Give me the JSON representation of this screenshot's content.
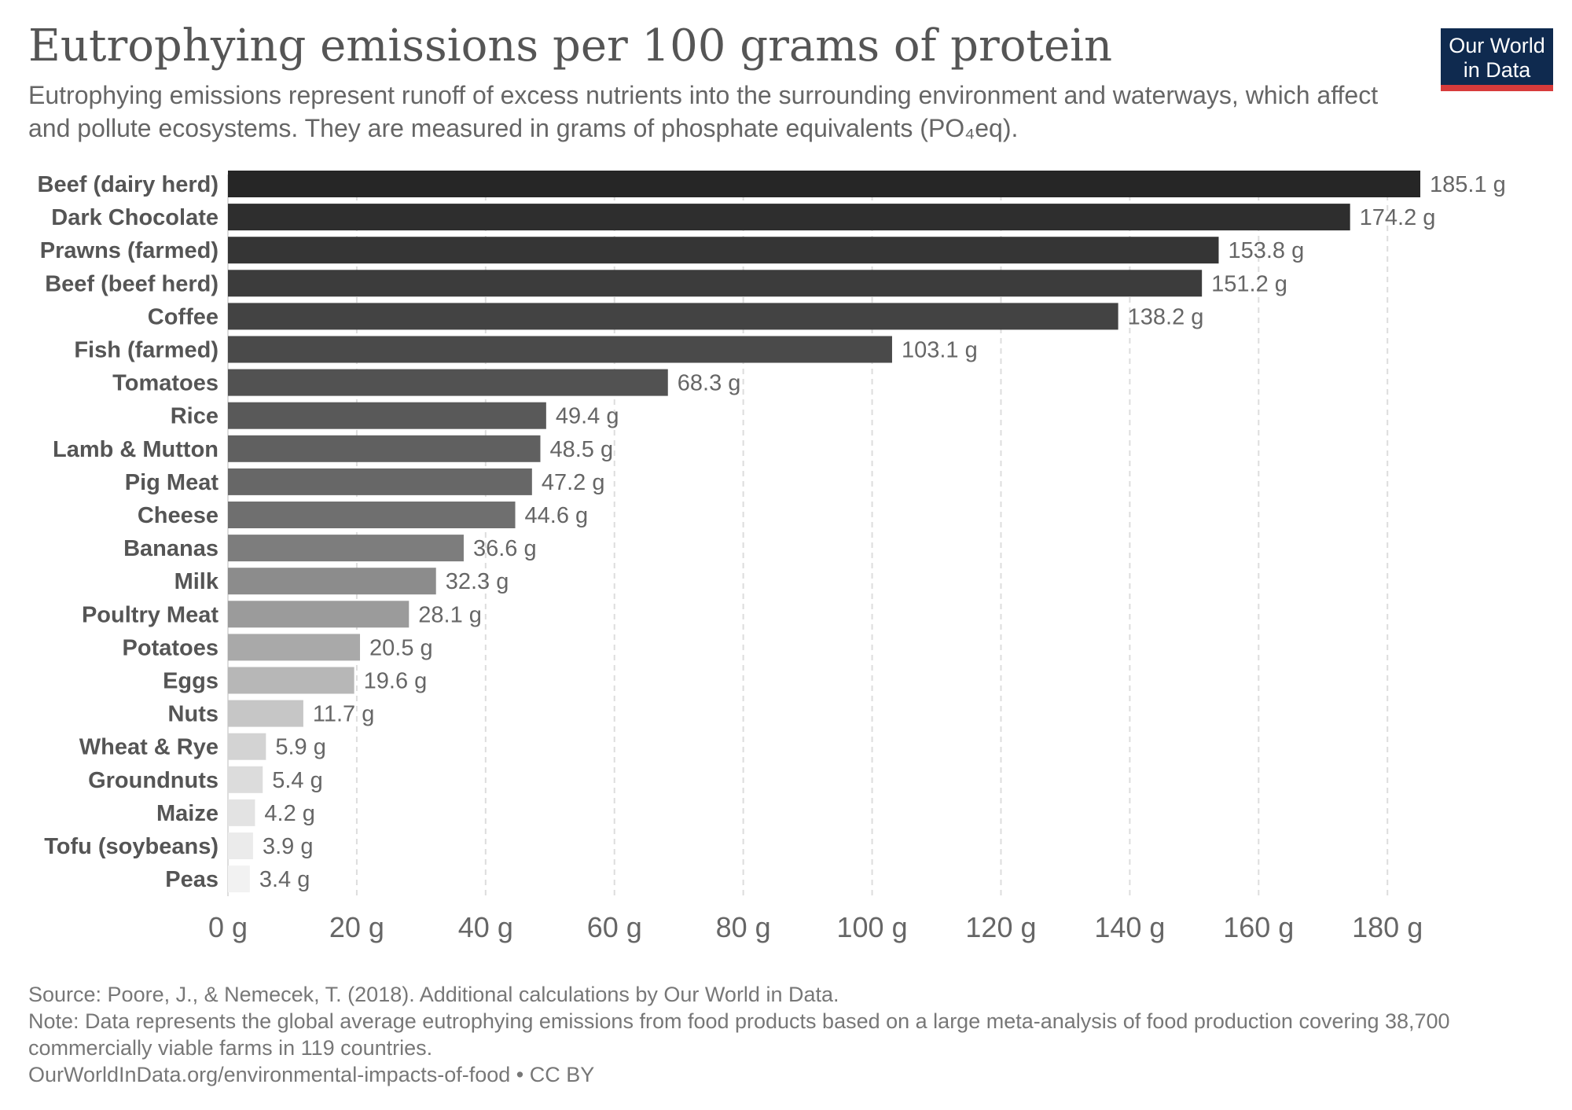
{
  "header": {
    "title": "Eutrophying emissions per 100 grams of protein",
    "subtitle": "Eutrophying emissions represent runoff of excess nutrients into the surrounding environment and waterways, which affect and pollute ecosystems. They are measured in grams of phosphate equivalents (PO₄eq)."
  },
  "logo": {
    "line1": "Our World",
    "line2": "in Data"
  },
  "chart_data": {
    "type": "bar",
    "orientation": "horizontal",
    "title": "Eutrophying emissions per 100 grams of protein",
    "categories": [
      "Beef (dairy herd)",
      "Dark Chocolate",
      "Prawns (farmed)",
      "Beef (beef herd)",
      "Coffee",
      "Fish (farmed)",
      "Tomatoes",
      "Rice",
      "Lamb & Mutton",
      "Pig Meat",
      "Cheese",
      "Bananas",
      "Milk",
      "Poultry Meat",
      "Potatoes",
      "Eggs",
      "Nuts",
      "Wheat & Rye",
      "Groundnuts",
      "Maize",
      "Tofu (soybeans)",
      "Peas"
    ],
    "values": [
      185.1,
      174.2,
      153.8,
      151.2,
      138.2,
      103.1,
      68.3,
      49.4,
      48.5,
      47.2,
      44.6,
      36.6,
      32.3,
      28.1,
      20.5,
      19.6,
      11.7,
      5.9,
      5.4,
      4.2,
      3.9,
      3.4
    ],
    "value_labels": [
      "185.1 g",
      "174.2 g",
      "153.8 g",
      "151.2 g",
      "138.2 g",
      "103.1 g",
      "68.3 g",
      "49.4 g",
      "48.5 g",
      "47.2 g",
      "44.6 g",
      "36.6 g",
      "32.3 g",
      "28.1 g",
      "20.5 g",
      "19.6 g",
      "11.7 g",
      "5.9 g",
      "5.4 g",
      "4.2 g",
      "3.9 g",
      "3.4 g"
    ],
    "x_ticks": [
      0,
      20,
      40,
      60,
      80,
      100,
      120,
      140,
      160,
      180
    ],
    "x_tick_labels": [
      "0 g",
      "20 g",
      "40 g",
      "60 g",
      "80 g",
      "100 g",
      "120 g",
      "140 g",
      "160 g",
      "180 g"
    ],
    "xlim": [
      0,
      185.1
    ],
    "grid": "vertical dashed",
    "bar_colors": [
      "#262626",
      "#2e2e2e",
      "#353535",
      "#3c3c3c",
      "#434343",
      "#4a4a4a",
      "#525252",
      "#595959",
      "#606060",
      "#676767",
      "#6f6f6f",
      "#7d7d7d",
      "#8c8c8c",
      "#9b9b9b",
      "#a9a9a9",
      "#b7b7b7",
      "#c6c6c6",
      "#d3d3d3",
      "#dcdcdc",
      "#e3e3e3",
      "#ebebeb",
      "#f2f2f2"
    ]
  },
  "footer": {
    "source": "Source: Poore, J., & Nemecek, T. (2018). Additional calculations by Our World in Data.",
    "note": "Note: Data represents the global average eutrophying emissions from food products based on a large meta-analysis of food production covering 38,700 commercially viable farms in 119 countries.",
    "link": "OurWorldInData.org/environmental-impacts-of-food • CC BY"
  }
}
